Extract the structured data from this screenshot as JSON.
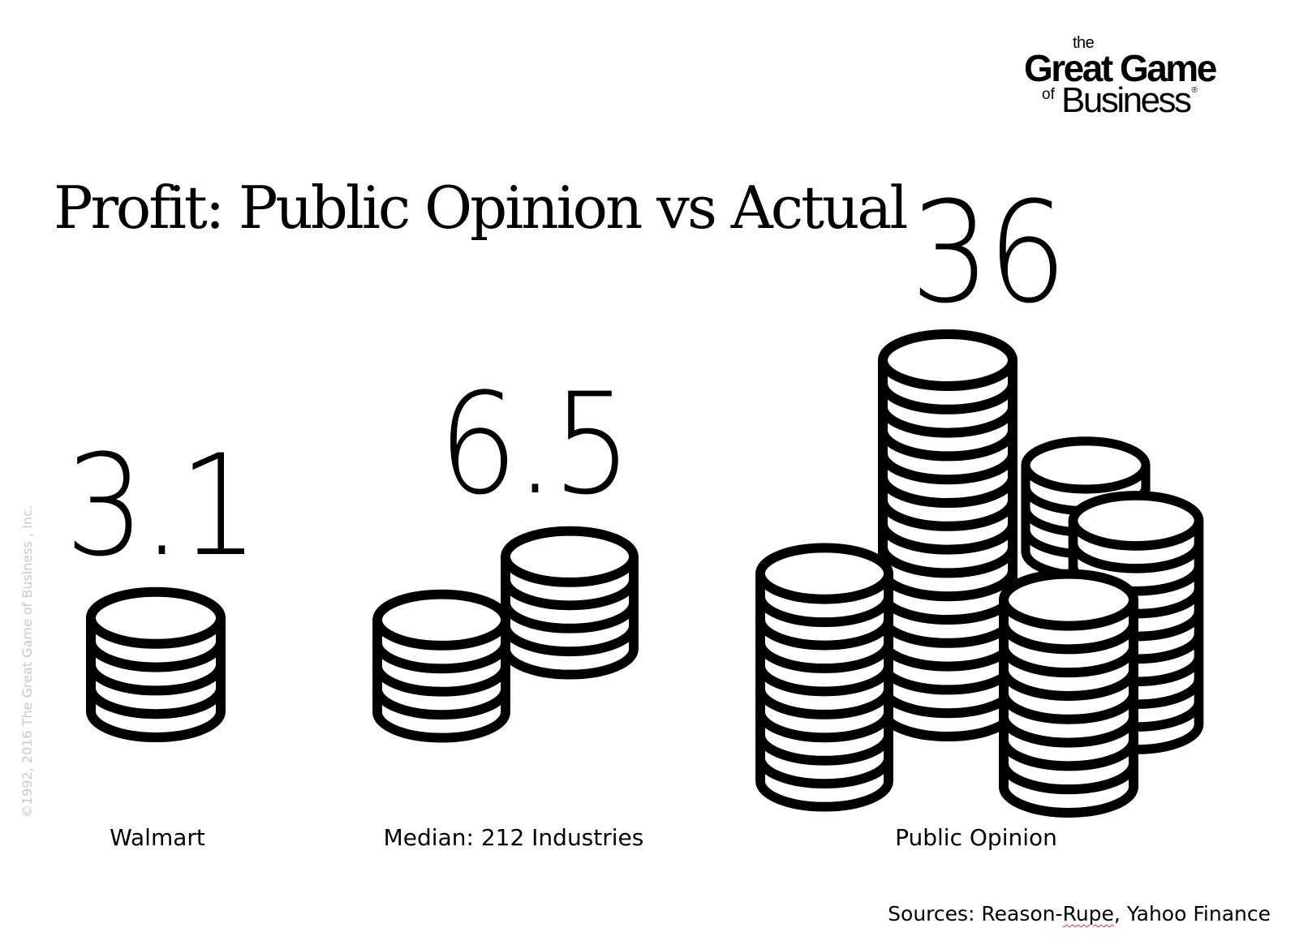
{
  "logo": {
    "the": "the",
    "great_game": "Great Game",
    "of": "of",
    "business": "Business",
    "registered_mark": "®"
  },
  "copyright": "©1992, 2016 The Great Game of Business , Inc.",
  "source": {
    "prefix": "Sources: Reason-",
    "squiggle": "Rupe",
    "rest": ", Yahoo Finance"
  },
  "chart_data": {
    "type": "bar",
    "title": "Profit: Public Opinion vs Actual",
    "categories": [
      "Walmart",
      "Median: 212 Industries",
      "Public Opinion"
    ],
    "values": [
      3.1,
      6.5,
      36
    ],
    "value_labels": [
      "3.1",
      "6.5",
      "36"
    ],
    "mark": "coin-stack-icon",
    "colors": {
      "ink": "#000000",
      "background": "#ffffff",
      "watermark": "#c9c9c9",
      "spell_underline": "#e23a3a"
    }
  }
}
